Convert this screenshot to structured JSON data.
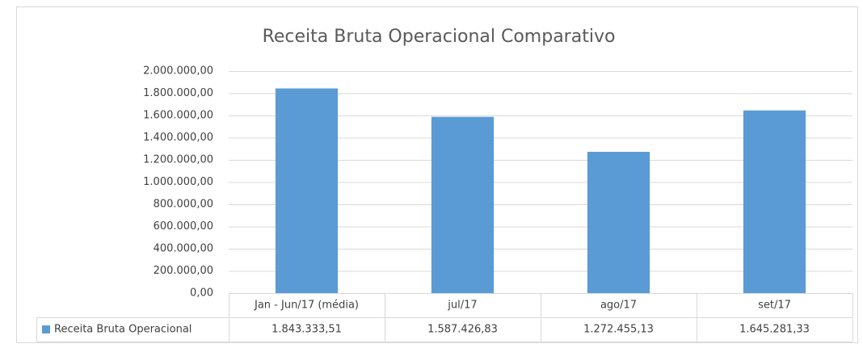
{
  "chart_data": {
    "type": "bar",
    "title": "Receita Bruta Operacional Comparativo",
    "categories": [
      "Jan - Jun/17 (média)",
      "jul/17",
      "ago/17",
      "set/17"
    ],
    "series": [
      {
        "name": "Receita Bruta Operacional",
        "color": "#5b9bd5",
        "values": [
          1843333.51,
          1587426.83,
          1272455.13,
          1645281.33
        ],
        "value_labels": [
          "1.843.333,51",
          "1.587.426,83",
          "1.272.455,13",
          "1.645.281,33"
        ]
      }
    ],
    "ylim": [
      0,
      2000000
    ],
    "yticks": [
      {
        "value": 0,
        "label": "0,00"
      },
      {
        "value": 200000,
        "label": "200.000,00"
      },
      {
        "value": 400000,
        "label": "400.000,00"
      },
      {
        "value": 600000,
        "label": "600.000,00"
      },
      {
        "value": 800000,
        "label": "800.000,00"
      },
      {
        "value": 1000000,
        "label": "1.000.000,00"
      },
      {
        "value": 1200000,
        "label": "1.200.000,00"
      },
      {
        "value": 1400000,
        "label": "1.400.000,00"
      },
      {
        "value": 1600000,
        "label": "1.600.000,00"
      },
      {
        "value": 1800000,
        "label": "1.800.000,00"
      },
      {
        "value": 2000000,
        "label": "2.000.000,00"
      }
    ],
    "grid": true
  }
}
